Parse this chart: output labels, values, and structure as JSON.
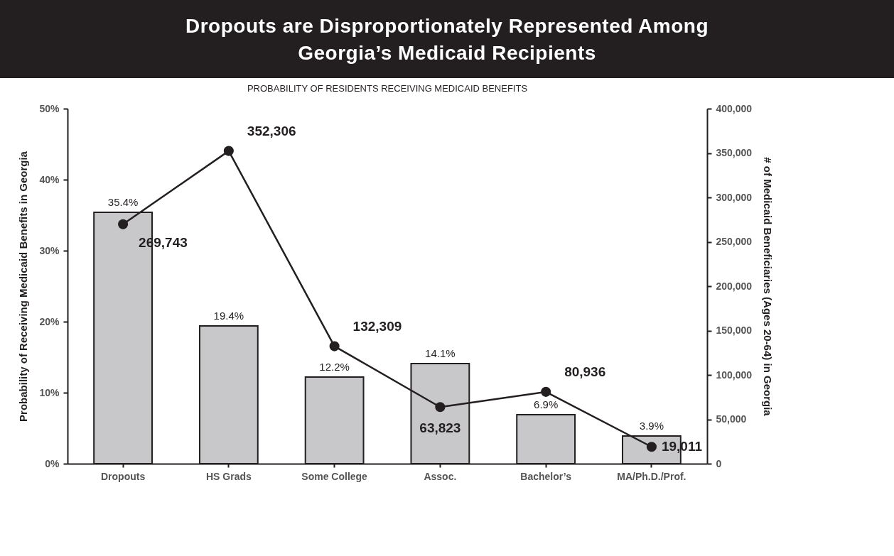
{
  "chart_data": {
    "type": "bar",
    "title": "Dropouts are Disproportionately Represented Among Georgia’s Medicaid Recipients",
    "subtitle": "PROBABILITY OF RESIDENTS RECEIVING MEDICAID BENEFITS",
    "ylabel": "Probability of Receiving Medicaid Benefits in Georgia",
    "y2label": "# of Medicaid Beneficiaries (Ages 20-64) in Georgia",
    "categories": [
      "Dropouts",
      "HS Grads",
      "Some College",
      "Assoc.",
      "Bachelor’s",
      "MA/Ph.D./Prof."
    ],
    "series": [
      {
        "color": "#c8c8ca",
        "values": [
          35.4,
          19.4,
          12.2,
          14.1,
          6.9,
          3.9
        ],
        "value_labels": [
          "35.4%",
          "19.4%",
          "12.2%",
          "14.1%",
          "6.9%",
          "3.9%"
        ]
      },
      {
        "type": "line",
        "axis": "y2",
        "color": "#231f20",
        "marker": "circle",
        "values": [
          269743,
          352306,
          132309,
          63823,
          80936,
          19011
        ],
        "value_labels": [
          "269,743",
          "352,306",
          "132,309",
          "63,823",
          "80,936",
          "19,011"
        ]
      }
    ],
    "ylim": [
      0,
      50
    ],
    "yticks": [
      {
        "value": 0,
        "label": "0%"
      },
      {
        "value": 10,
        "label": "10%"
      },
      {
        "value": 20,
        "label": "20%"
      },
      {
        "value": 30,
        "label": "30%"
      },
      {
        "value": 40,
        "label": "40%"
      },
      {
        "value": 50,
        "label": "50%"
      }
    ],
    "y2lim": [
      0,
      400000
    ],
    "y2ticks": [
      0,
      {
        "value": 50000,
        "label": "50,000"
      },
      {
        "value": 100000,
        "label": "100,000"
      },
      {
        "value": 150000,
        "label": "150,000"
      },
      {
        "value": 200000,
        "label": "200,000"
      },
      {
        "value": 250000,
        "label": "250,000"
      },
      {
        "value": 300000,
        "label": "300,000"
      },
      {
        "value": 350000,
        "label": "350,000"
      },
      {
        "value": 400000,
        "label": "400,000"
      }
    ]
  }
}
